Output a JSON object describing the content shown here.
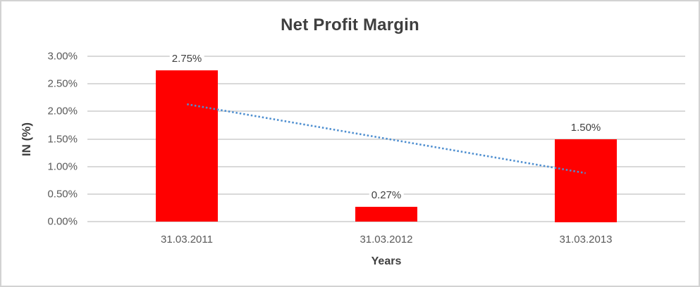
{
  "window": {
    "background": "#ffffff",
    "border_color": "#d2d2d2"
  },
  "chart_data": {
    "type": "bar",
    "title": "Net Profit Margin",
    "xlabel": "Years",
    "ylabel": "IN (%)",
    "categories": [
      "31.03.2011",
      "31.03.2012",
      "31.03.2013"
    ],
    "values": [
      2.75,
      0.27,
      1.5
    ],
    "data_labels": [
      "2.75%",
      "0.27%",
      "1.50%"
    ],
    "ylim": [
      0,
      3
    ],
    "y_tick_step": 0.5,
    "y_ticks_top_to_bottom": [
      "3.00%",
      "2.50%",
      "2.00%",
      "1.50%",
      "1.00%",
      "0.50%",
      "0.00%"
    ],
    "grid": true,
    "legend": false,
    "trendline": {
      "type": "linear",
      "style": "dotted",
      "fitted_endpoints_pct": [
        2.13,
        0.88
      ]
    },
    "colors": {
      "bar": "#ff0000",
      "trendline": "#4f8fd0",
      "gridline": "#d9d9d9",
      "title_text": "#3f3f3f",
      "axis_text": "#595959"
    }
  }
}
